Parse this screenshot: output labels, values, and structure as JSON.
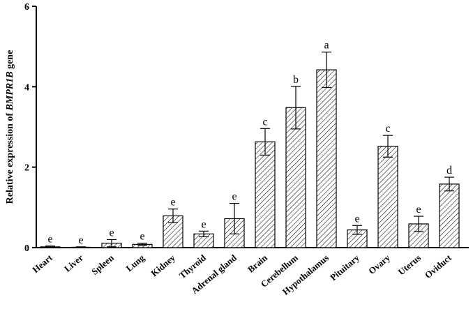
{
  "chart_data": {
    "type": "bar",
    "ylabel_prefix": "Relative expression of ",
    "ylabel_gene": "BMPR1B",
    "ylabel_suffix": " gene",
    "ylim": [
      0,
      6
    ],
    "yticks": [
      0,
      2,
      4,
      6
    ],
    "grid": false,
    "fill_pattern": "diagonal-hatch",
    "categories": [
      "Heart",
      "Liver",
      "Spleen",
      "Lung",
      "Kidney",
      "Thyroid",
      "Adrenal gland",
      "Brain",
      "Cerebellum",
      "Hypothalamus",
      "Pituitary",
      "Ovary",
      "Uterus",
      "Oviduct"
    ],
    "values": [
      0.02,
      0.01,
      0.11,
      0.08,
      0.79,
      0.34,
      0.72,
      2.63,
      3.48,
      4.42,
      0.44,
      2.52,
      0.59,
      1.58
    ],
    "errors": [
      0.02,
      0.01,
      0.09,
      0.03,
      0.17,
      0.07,
      0.38,
      0.33,
      0.53,
      0.44,
      0.11,
      0.27,
      0.19,
      0.17
    ],
    "significance": [
      "e",
      "e",
      "e",
      "e",
      "e",
      "e",
      "e",
      "c",
      "b",
      "a",
      "e",
      "c",
      "e",
      "d"
    ]
  }
}
